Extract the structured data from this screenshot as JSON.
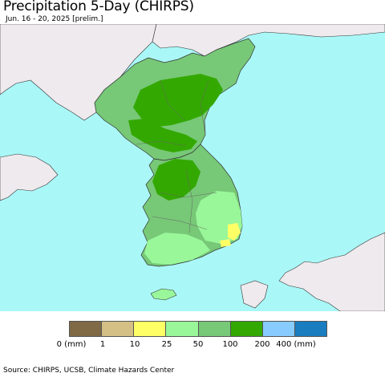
{
  "header": {
    "title": "Precipitation 5-Day (CHIRPS)",
    "subtitle": "Jun. 16 - 20, 2025 [prelim.]"
  },
  "map": {
    "colors": {
      "ocean": "#aaf7f7",
      "foreign_land": "#eeeaee",
      "border": "#555555"
    }
  },
  "legend": {
    "swatches": [
      {
        "color": "#7f6a45"
      },
      {
        "color": "#d4bf85"
      },
      {
        "color": "#ffff66"
      },
      {
        "color": "#99f799"
      },
      {
        "color": "#77c877"
      },
      {
        "color": "#33a800"
      },
      {
        "color": "#88ccff"
      },
      {
        "color": "#1a7dc0"
      }
    ],
    "labels": [
      "0 (mm)",
      "1",
      "10",
      "25",
      "50",
      "100",
      "200",
      "400 (mm)"
    ]
  },
  "footer": {
    "source": "Source: CHIRPS, UCSB, Climate Hazards Center"
  }
}
